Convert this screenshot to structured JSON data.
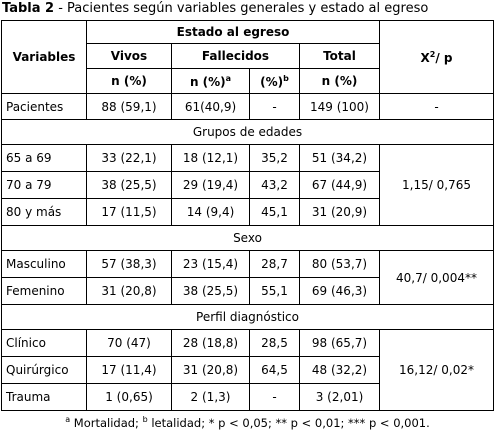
{
  "caption": {
    "label": "Tabla 2",
    "text": " - Pacientes según variables generales y estado al egreso"
  },
  "table": {
    "header": {
      "variables": "Variables",
      "group": "Estado al egreso",
      "vivos": "Vivos",
      "fallecidos": "Fallecidos",
      "total": "Total",
      "test": {
        "text": "X",
        "sup": "2",
        "rest": "/ p"
      },
      "units": [
        {
          "text": "n (%)"
        },
        {
          "text": "n (%)",
          "sup": "a"
        },
        {
          "text": "(%)",
          "sup": "b"
        },
        {
          "text": "n (%)"
        }
      ]
    },
    "first_row": [
      "Pacientes",
      "88 (59,1)",
      "61(40,9)",
      "-",
      "149 (100)",
      "-"
    ],
    "sections": [
      {
        "title": "Grupos de edades",
        "test": "1,15/ 0,765",
        "rows": [
          [
            "65 a 69",
            "33 (22,1)",
            "18 (12,1)",
            "35,2",
            "51 (34,2)"
          ],
          [
            "70 a 79",
            "38 (25,5)",
            "29 (19,4)",
            "43,2",
            "67 (44,9)"
          ],
          [
            "80 y más",
            "17 (11,5)",
            "14 (9,4)",
            "45,1",
            "31 (20,9)"
          ]
        ]
      },
      {
        "title": "Sexo",
        "test": "40,7/ 0,004**",
        "rows": [
          [
            "Masculino",
            "57 (38,3)",
            "23 (15,4)",
            "28,7",
            "80 (53,7)"
          ],
          [
            "Femenino",
            "31 (20,8)",
            "38 (25,5)",
            "55,1",
            "69 (46,3)"
          ]
        ]
      },
      {
        "title": "Perfil diagnóstico",
        "test": "16,12/ 0,02*",
        "rows": [
          [
            "Clínico",
            "70 (47)",
            "28 (18,8)",
            "28,5",
            "98 (65,7)"
          ],
          [
            "Quirúrgico",
            "17 (11,4)",
            "31 (20,8)",
            "64,5",
            "48 (32,2)"
          ],
          [
            "Trauma",
            "1 (0,65)",
            "2 (1,3)",
            "-",
            "3 (2,01)"
          ]
        ]
      }
    ]
  },
  "footnote": {
    "sup_a": "a",
    "a": " Mortalidad; ",
    "sup_b": "b",
    "rest": " letalidad; * p < 0,05; ** p < 0,01; *** p < 0,001."
  }
}
